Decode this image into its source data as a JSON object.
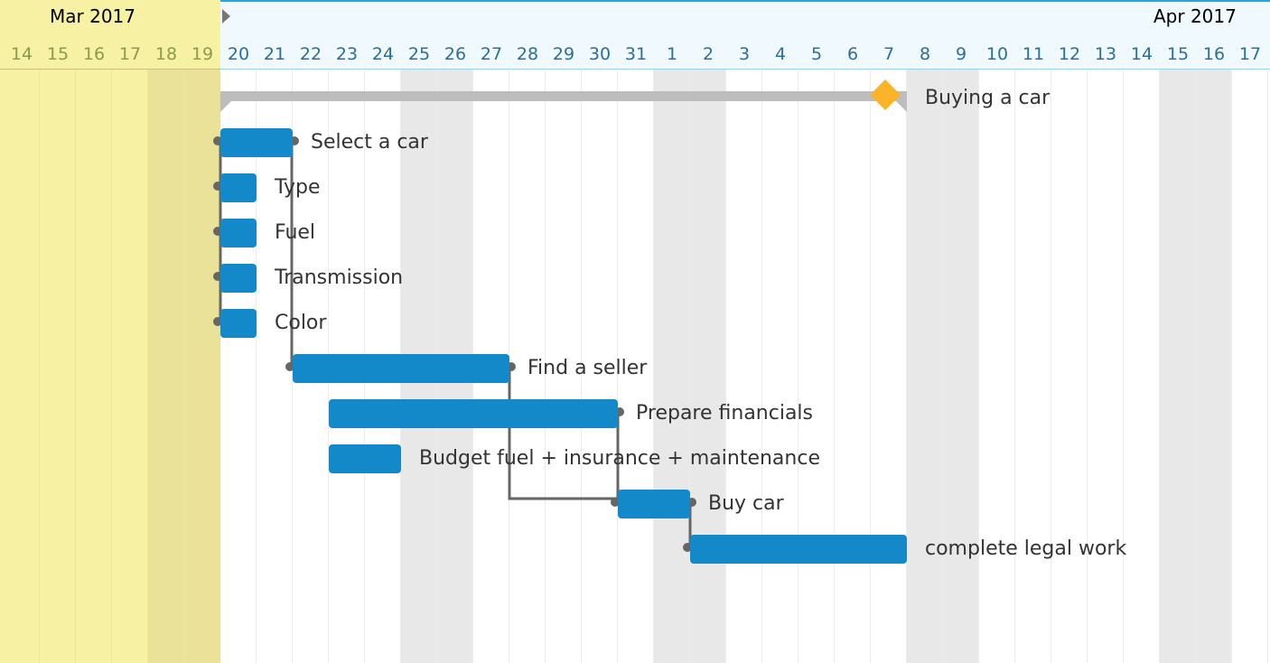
{
  "timeline": {
    "months": [
      {
        "label": "Mar 2017",
        "color": "#8a9a4e"
      },
      {
        "label": "Apr 2017",
        "color": "#2b6f94"
      }
    ],
    "days": [
      "14",
      "15",
      "16",
      "17",
      "18",
      "19",
      "20",
      "21",
      "22",
      "23",
      "24",
      "25",
      "26",
      "27",
      "28",
      "29",
      "30",
      "31",
      "1",
      "2",
      "3",
      "4",
      "5",
      "6",
      "7",
      "8",
      "9",
      "10",
      "11",
      "12",
      "13",
      "14",
      "15",
      "16",
      "17"
    ],
    "day_colors": {
      "past": "#8a9a4e",
      "future": "#2b6f94"
    }
  },
  "tasks": [
    {
      "name": "Buying a car",
      "type": "summary"
    },
    {
      "name": "Select a car",
      "type": "task"
    },
    {
      "name": "Type",
      "type": "task"
    },
    {
      "name": "Fuel",
      "type": "task"
    },
    {
      "name": "Transmission",
      "type": "task"
    },
    {
      "name": "Color",
      "type": "task"
    },
    {
      "name": "Find a seller",
      "type": "task"
    },
    {
      "name": "Prepare financials",
      "type": "task"
    },
    {
      "name": "Budget fuel + insurance + maintenance",
      "type": "task"
    },
    {
      "name": "Buy car",
      "type": "task"
    },
    {
      "name": "complete legal work",
      "type": "task"
    }
  ],
  "colors": {
    "task_bar": "#1389c9",
    "summary_bar": "#bdbdbd",
    "milestone": "#f9b428",
    "past_region": "#f7f1a4",
    "weekend": "#e8e8e8",
    "link": "#666666"
  }
}
